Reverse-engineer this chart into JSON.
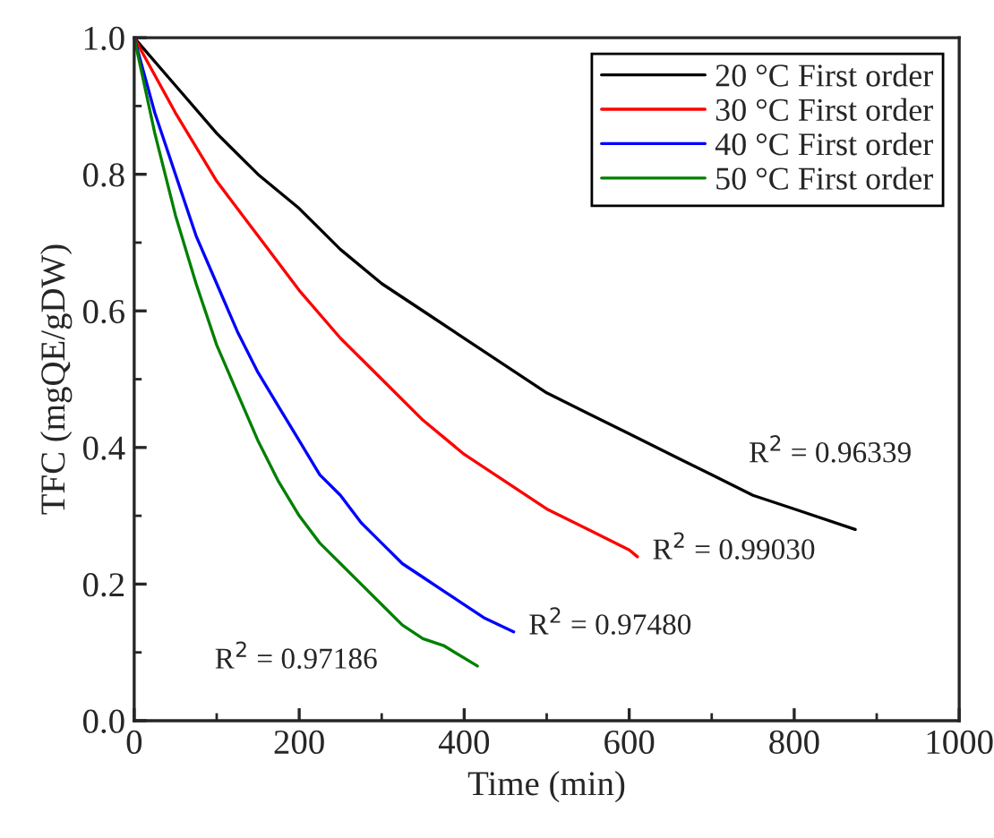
{
  "chart_data": {
    "type": "line",
    "xlabel": "Time (min)",
    "ylabel": "TFC (mgQE/gDW)",
    "xlim": [
      0,
      1000
    ],
    "xticks": [
      0,
      200,
      400,
      600,
      800,
      1000
    ],
    "ylim": [
      0,
      1
    ],
    "yticks": [
      {
        "value": 0,
        "label": "0.0"
      },
      {
        "value": 0.2,
        "label": "0.2"
      },
      {
        "value": 0.4,
        "label": "0.4"
      },
      {
        "value": 0.6,
        "label": "0.6"
      },
      {
        "value": 0.8,
        "label": "0.8"
      },
      {
        "value": 1,
        "label": "1.0"
      }
    ],
    "grid": false,
    "legend": "top right",
    "marker": "none",
    "line_style": "solid",
    "series": [
      {
        "name": "20 °C First order",
        "color": "#000000",
        "x": [
          0,
          50,
          100,
          150,
          200,
          250,
          300,
          350,
          400,
          450,
          500,
          550,
          600,
          650,
          700,
          750,
          800,
          874
        ],
        "values": [
          1.0,
          0.93,
          0.86,
          0.8,
          0.75,
          0.69,
          0.64,
          0.6,
          0.56,
          0.52,
          0.48,
          0.45,
          0.42,
          0.39,
          0.36,
          0.33,
          0.31,
          0.28
        ]
      },
      {
        "name": "30 °C First order",
        "color": "#ff0000",
        "x": [
          0,
          50,
          100,
          150,
          200,
          250,
          300,
          350,
          400,
          450,
          500,
          550,
          600,
          610
        ],
        "values": [
          1.0,
          0.89,
          0.79,
          0.71,
          0.63,
          0.56,
          0.5,
          0.44,
          0.39,
          0.35,
          0.31,
          0.28,
          0.25,
          0.24
        ]
      },
      {
        "name": "40 °C First order",
        "color": "#0000ff",
        "x": [
          0,
          25,
          50,
          75,
          100,
          125,
          150,
          175,
          200,
          225,
          250,
          275,
          300,
          325,
          350,
          375,
          400,
          425,
          460
        ],
        "values": [
          1.0,
          0.89,
          0.8,
          0.71,
          0.64,
          0.57,
          0.51,
          0.46,
          0.41,
          0.36,
          0.33,
          0.29,
          0.26,
          0.23,
          0.21,
          0.19,
          0.17,
          0.15,
          0.13
        ]
      },
      {
        "name": "50 °C First order",
        "color": "#008000",
        "x": [
          0,
          25,
          50,
          75,
          100,
          125,
          150,
          175,
          200,
          225,
          250,
          275,
          300,
          325,
          350,
          375,
          416
        ],
        "values": [
          1.0,
          0.86,
          0.74,
          0.64,
          0.55,
          0.48,
          0.41,
          0.35,
          0.3,
          0.26,
          0.23,
          0.2,
          0.17,
          0.14,
          0.12,
          0.11,
          0.08
        ]
      }
    ],
    "annotations": [
      "R$^{2}$ = 0.96339",
      "R$^{2}$ = 0.99030",
      "R$^{2}$ = 0.97480",
      "R$^{2}$ = 0.97186"
    ]
  }
}
